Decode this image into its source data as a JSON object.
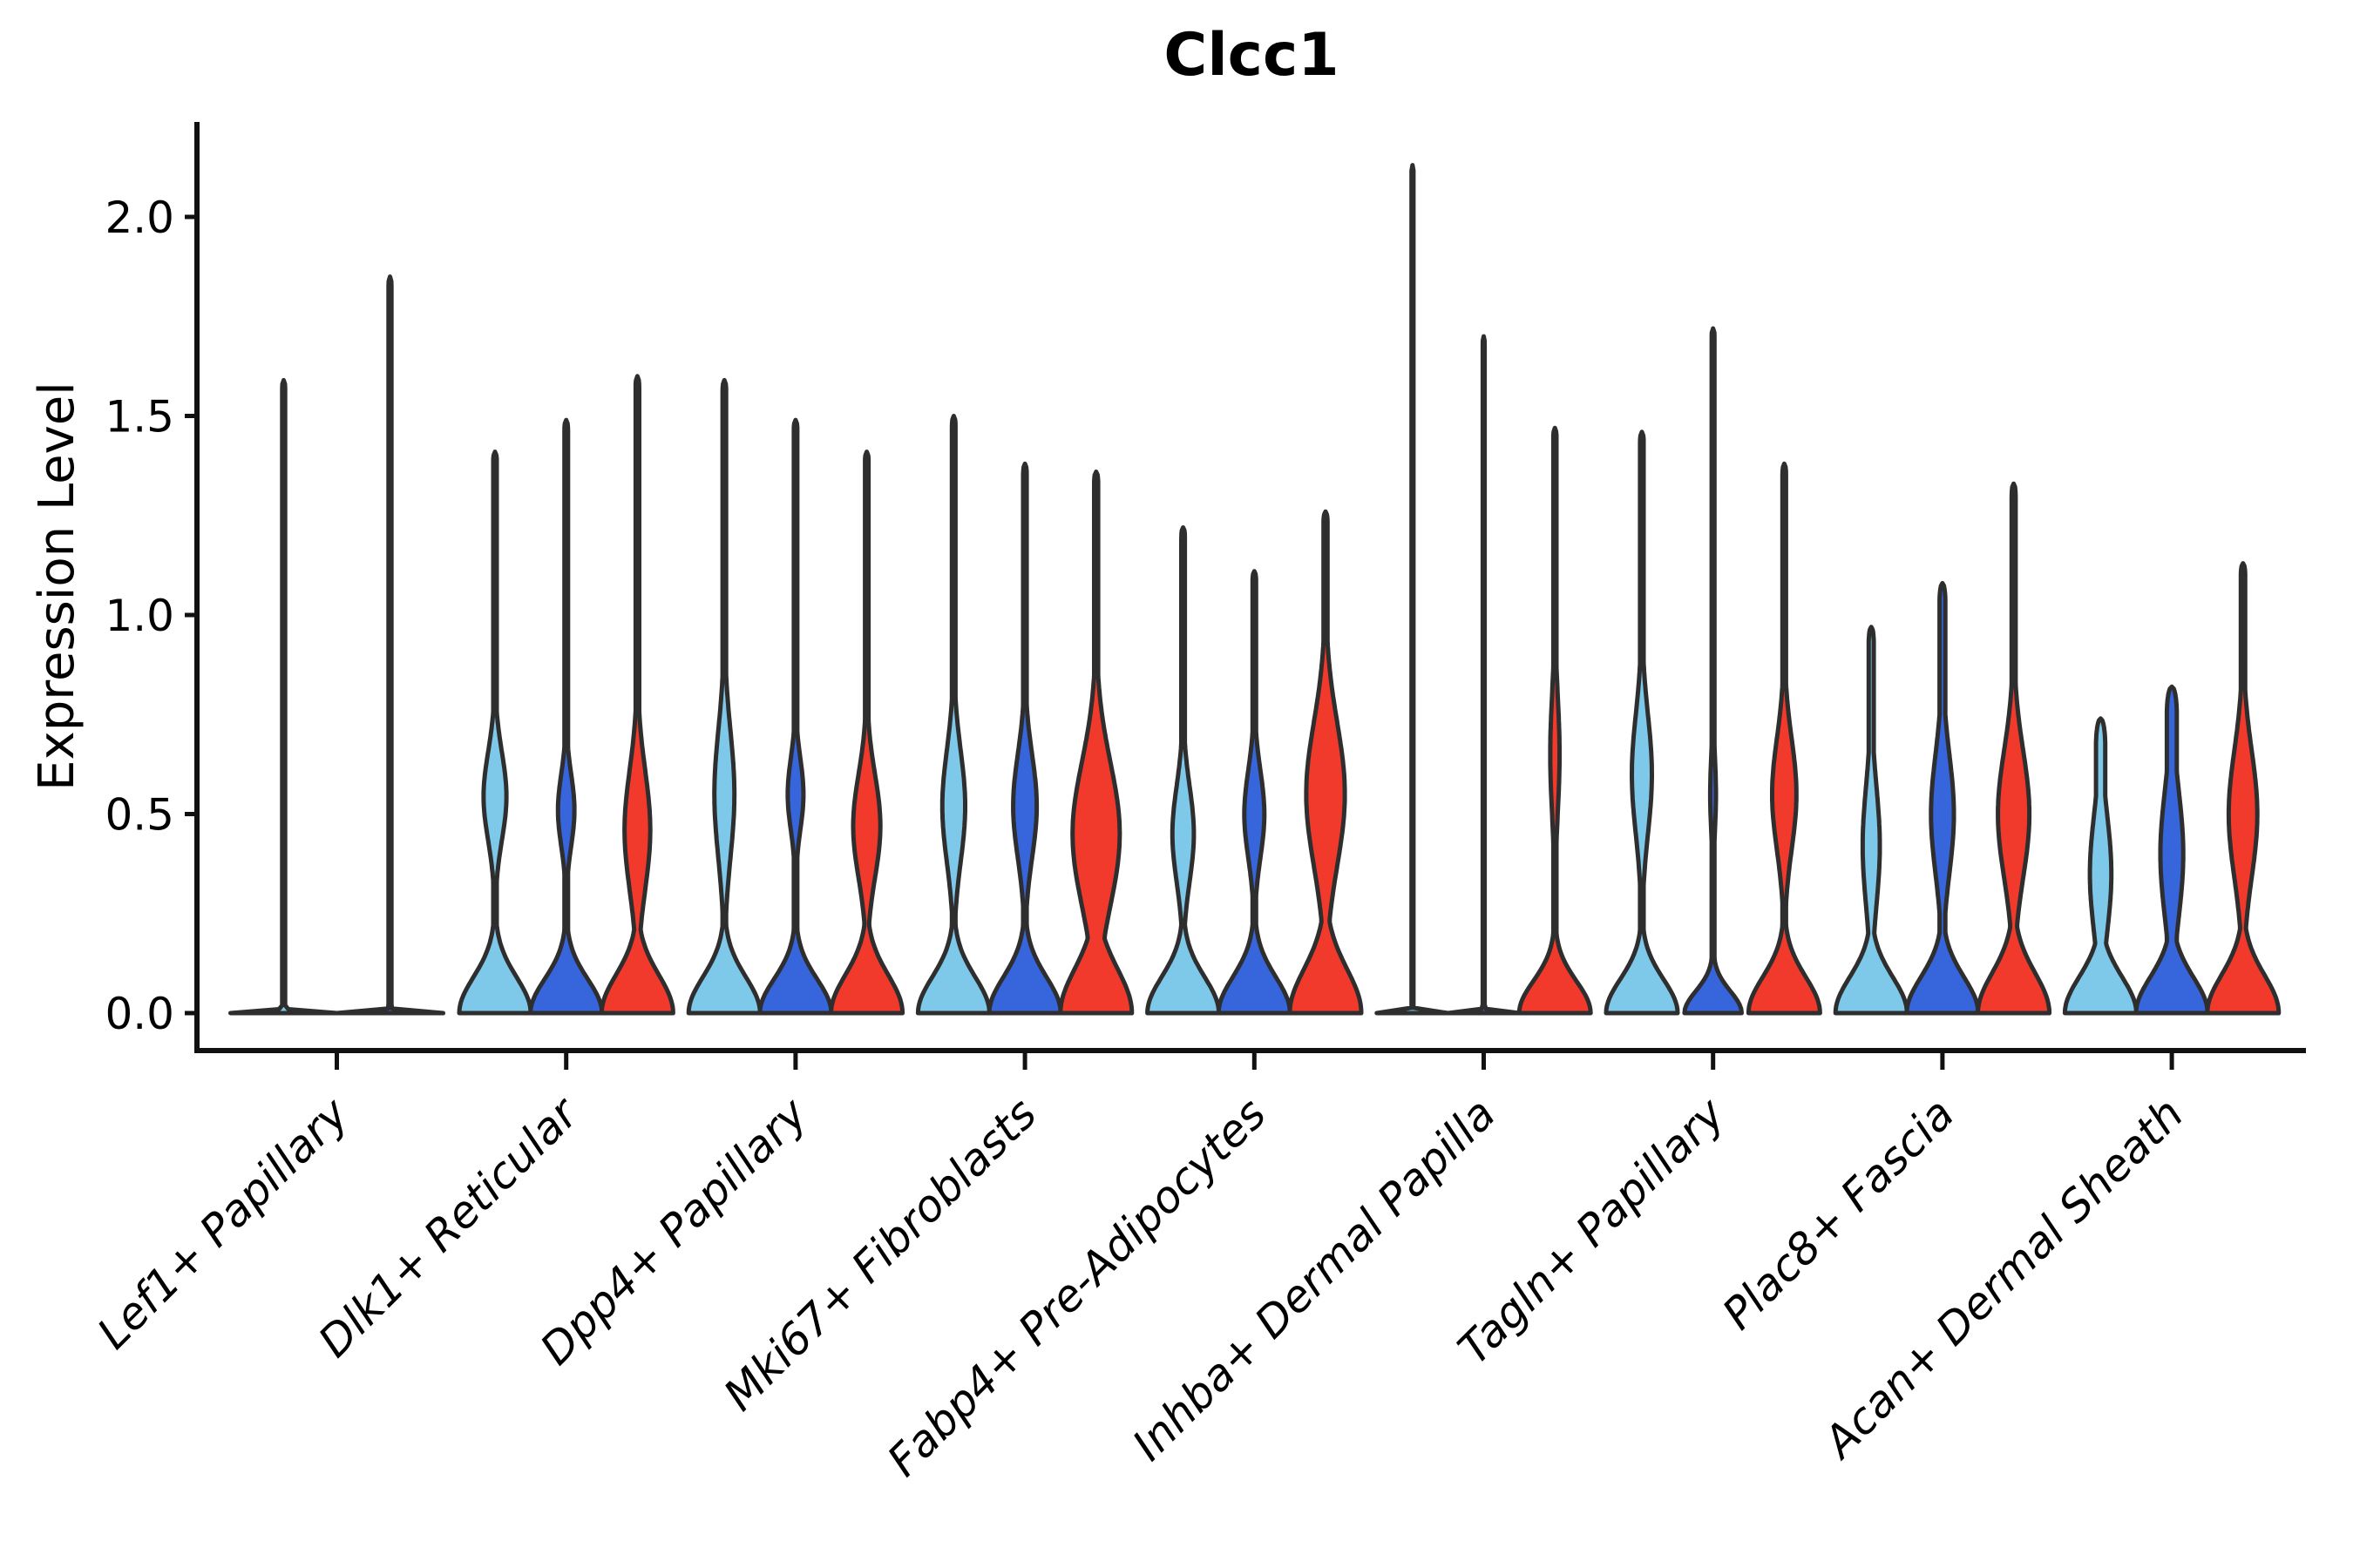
{
  "figure": {
    "title": "Clcc1",
    "y_label": "Expression Level"
  },
  "colors": {
    "skyblue": "#7EC9EA",
    "royalblue": "#3765DB",
    "red": "#F23A2C",
    "violin_edge": "#2E2E2E",
    "axis": "#111111",
    "text": "#000000"
  },
  "chart_data": {
    "type": "violin",
    "title": "Clcc1",
    "xlabel": "",
    "ylabel": "Expression Level",
    "ylim": [
      0,
      2.29
    ],
    "yticks": [
      0.0,
      0.5,
      1.0,
      1.5,
      2.0
    ],
    "ytick_labels": [
      "0.0",
      "0.5",
      "1.0",
      "1.5",
      "2.0"
    ],
    "grid": false,
    "legend_position": "none",
    "series_palette": [
      "skyblue",
      "royalblue",
      "red"
    ],
    "categories": [
      "Lef1+ Papillary",
      "Dlk1+ Reticular",
      "Dpp4+ Papillary",
      "Mki67+ Fibroblasts",
      "Fabp4+ Pre-Adipocytes",
      "Inhba+ Dermal Papilla",
      "Tagln+ Papillary",
      "Plac8+ Fascia",
      "Acan+ Dermal Sheath"
    ],
    "groups": [
      {
        "category": "Lef1+ Papillary",
        "violins": [
          {
            "color": "skyblue",
            "kind": "hairline",
            "max": 1.59
          },
          {
            "color": "royalblue",
            "kind": "hairline",
            "max": 1.85
          }
        ]
      },
      {
        "category": "Dlk1+ Reticular",
        "violins": [
          {
            "color": "skyblue",
            "kind": "violin",
            "max": 1.41,
            "tent": 0.09,
            "bulge_center": 0.545,
            "bulge_sigma": 0.11,
            "bulge_width": 0.32,
            "spike": 0.05,
            "tip": 0.025
          },
          {
            "color": "royalblue",
            "kind": "violin",
            "max": 1.49,
            "tent": 0.085,
            "bulge_center": 0.51,
            "bulge_sigma": 0.09,
            "bulge_width": 0.23,
            "spike": 0.05,
            "tip": 0.025
          },
          {
            "color": "red",
            "kind": "violin",
            "max": 1.6,
            "tent": 0.095,
            "bulge_center": 0.46,
            "bulge_sigma": 0.15,
            "bulge_width": 0.36,
            "spike": 0.05,
            "tip": 0.025
          }
        ]
      },
      {
        "category": "Dpp4+ Papillary",
        "violins": [
          {
            "color": "skyblue",
            "kind": "violin",
            "max": 1.59,
            "tent": 0.09,
            "bulge_center": 0.55,
            "bulge_sigma": 0.16,
            "bulge_width": 0.28,
            "spike": 0.05,
            "tip": 0.025
          },
          {
            "color": "royalblue",
            "kind": "violin",
            "max": 1.49,
            "tent": 0.085,
            "bulge_center": 0.55,
            "bulge_sigma": 0.09,
            "bulge_width": 0.22,
            "spike": 0.05,
            "tip": 0.025
          },
          {
            "color": "red",
            "kind": "violin",
            "max": 1.41,
            "tent": 0.095,
            "bulge_center": 0.47,
            "bulge_sigma": 0.13,
            "bulge_width": 0.38,
            "spike": 0.05,
            "tip": 0.025
          }
        ]
      },
      {
        "category": "Mki67+ Fibroblasts",
        "violins": [
          {
            "color": "skyblue",
            "kind": "violin",
            "max": 1.5,
            "tent": 0.09,
            "bulge_center": 0.52,
            "bulge_sigma": 0.14,
            "bulge_width": 0.32,
            "spike": 0.05,
            "tip": 0.025
          },
          {
            "color": "royalblue",
            "kind": "violin",
            "max": 1.38,
            "tent": 0.09,
            "bulge_center": 0.52,
            "bulge_sigma": 0.13,
            "bulge_width": 0.33,
            "spike": 0.05,
            "tip": 0.025
          },
          {
            "color": "red",
            "kind": "violin",
            "max": 1.36,
            "tent": 0.11,
            "bulge_center": 0.45,
            "bulge_sigma": 0.18,
            "bulge_width": 0.66,
            "spike": 0.055,
            "tip": 0.025
          }
        ]
      },
      {
        "category": "Fabp4+ Pre-Adipocytes",
        "violins": [
          {
            "color": "skyblue",
            "kind": "violin",
            "max": 1.22,
            "tent": 0.09,
            "bulge_center": 0.45,
            "bulge_sigma": 0.12,
            "bulge_width": 0.3,
            "spike": 0.05,
            "tip": 0.025
          },
          {
            "color": "royalblue",
            "kind": "violin",
            "max": 1.11,
            "tent": 0.09,
            "bulge_center": 0.5,
            "bulge_sigma": 0.11,
            "bulge_width": 0.28,
            "spike": 0.05,
            "tip": 0.025
          },
          {
            "color": "red",
            "kind": "violin",
            "max": 1.26,
            "tent": 0.11,
            "bulge_center": 0.55,
            "bulge_sigma": 0.18,
            "bulge_width": 0.54,
            "spike": 0.055,
            "tip": 0.025
          }
        ]
      },
      {
        "category": "Inhba+ Dermal Papilla",
        "violins": [
          {
            "color": "skyblue",
            "kind": "hairline",
            "max": 2.13
          },
          {
            "color": "royalblue",
            "kind": "hairline",
            "max": 1.7
          },
          {
            "color": "red",
            "kind": "violin",
            "max": 1.47,
            "tent": 0.08,
            "bulge_center": 0.65,
            "bulge_sigma": 0.15,
            "bulge_width": 0.13,
            "spike": 0.045,
            "tip": 0.025
          }
        ]
      },
      {
        "category": "Tagln+ Papillary",
        "violins": [
          {
            "color": "skyblue",
            "kind": "violin",
            "max": 1.46,
            "tent": 0.085,
            "bulge_center": 0.6,
            "bulge_sigma": 0.15,
            "bulge_width": 0.28,
            "spike": 0.05,
            "tip": 0.025
          },
          {
            "color": "royalblue",
            "kind": "violin",
            "max": 1.72,
            "tent": 0.055,
            "tent_width": 0.8,
            "bulge_center": 0.55,
            "bulge_sigma": 0.1,
            "bulge_width": 0.08,
            "spike": 0.04,
            "tip": 0.02
          },
          {
            "color": "red",
            "kind": "violin",
            "max": 1.38,
            "tent": 0.09,
            "bulge_center": 0.55,
            "bulge_sigma": 0.14,
            "bulge_width": 0.34,
            "spike": 0.05,
            "tip": 0.025
          }
        ]
      },
      {
        "category": "Plac8+ Fascia",
        "violins": [
          {
            "color": "skyblue",
            "kind": "violin",
            "max": 0.97,
            "tent": 0.09,
            "bulge_center": 0.42,
            "bulge_sigma": 0.15,
            "bulge_width": 0.24,
            "spike": 0.07,
            "tip": 0.04
          },
          {
            "color": "royalblue",
            "kind": "violin",
            "max": 1.08,
            "tent": 0.09,
            "bulge_center": 0.5,
            "bulge_sigma": 0.15,
            "bulge_width": 0.32,
            "spike": 0.08,
            "tip": 0.045
          },
          {
            "color": "red",
            "kind": "violin",
            "max": 1.33,
            "tent": 0.1,
            "bulge_center": 0.5,
            "bulge_sigma": 0.16,
            "bulge_width": 0.44,
            "spike": 0.055,
            "tip": 0.03
          }
        ]
      },
      {
        "category": "Acan+ Dermal Sheath",
        "violins": [
          {
            "color": "skyblue",
            "kind": "violin",
            "max": 0.74,
            "tent": 0.09,
            "bulge_center": 0.35,
            "bulge_sigma": 0.15,
            "bulge_width": 0.3,
            "spike": 0.13,
            "tip": 0.07
          },
          {
            "color": "royalblue",
            "kind": "violin",
            "max": 0.82,
            "tent": 0.09,
            "bulge_center": 0.4,
            "bulge_sigma": 0.16,
            "bulge_width": 0.32,
            "spike": 0.14,
            "tip": 0.07
          },
          {
            "color": "red",
            "kind": "violin",
            "max": 1.13,
            "tent": 0.095,
            "bulge_center": 0.5,
            "bulge_sigma": 0.16,
            "bulge_width": 0.4,
            "spike": 0.06,
            "tip": 0.03
          }
        ]
      }
    ]
  }
}
